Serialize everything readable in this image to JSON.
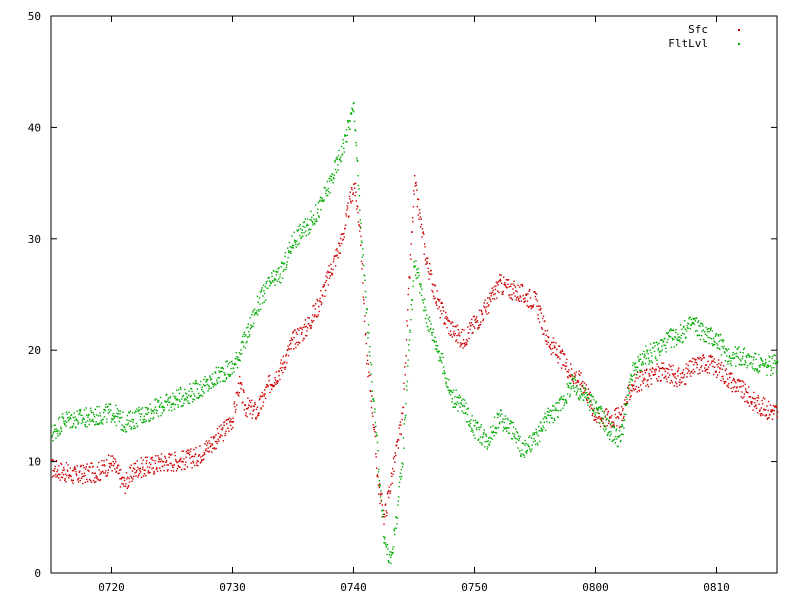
{
  "chart_data": {
    "type": "scatter",
    "title": "",
    "xlabel": "",
    "ylabel": "",
    "x_range_minutes": [
      "0715",
      "0815"
    ],
    "ylim": [
      0,
      50
    ],
    "x_ticks": [
      "0720",
      "0730",
      "0740",
      "0750",
      "0800",
      "0810"
    ],
    "y_ticks": [
      "0",
      "10",
      "20",
      "30",
      "40",
      "50"
    ],
    "grid": false,
    "legend_placement": "top-right",
    "series": [
      {
        "name": "Sfc",
        "color": "#cc0000",
        "points": [
          [
            "0715",
            9.5
          ],
          [
            "0717",
            8.8
          ],
          [
            "0719",
            9.2
          ],
          [
            "0720",
            10.0
          ],
          [
            "0721",
            8.0
          ],
          [
            "0722",
            9.5
          ],
          [
            "0723",
            9.6
          ],
          [
            "0724",
            10.0
          ],
          [
            "0725",
            10.1
          ],
          [
            "0726",
            10.2
          ],
          [
            "0727",
            10.5
          ],
          [
            "0728",
            11.5
          ],
          [
            "0729",
            12.5
          ],
          [
            "0730",
            14.0
          ],
          [
            "0730.5",
            17.0
          ],
          [
            "0731",
            15.0
          ],
          [
            "0732",
            14.5
          ],
          [
            "0733",
            17.0
          ],
          [
            "0734",
            18.5
          ],
          [
            "0735",
            21.0
          ],
          [
            "0736",
            22.0
          ],
          [
            "0737",
            24.0
          ],
          [
            "0738",
            27.0
          ],
          [
            "0739",
            30.0
          ],
          [
            "0740",
            35.0
          ],
          [
            "0740.5",
            31.0
          ],
          [
            "0741",
            20.0
          ],
          [
            "0741.5",
            15.0
          ],
          [
            "0742",
            8.0
          ],
          [
            "0742.5",
            5.0
          ],
          [
            "0743",
            8.0
          ],
          [
            "0743.5",
            11.0
          ],
          [
            "0744",
            14.0
          ],
          [
            "0744.5",
            25.0
          ],
          [
            "0745",
            35.0
          ],
          [
            "0746",
            28.0
          ],
          [
            "0747",
            24.0
          ],
          [
            "0748",
            22.0
          ],
          [
            "0749",
            21.0
          ],
          [
            "0750",
            22.5
          ],
          [
            "0751",
            24.0
          ],
          [
            "0752",
            26.0
          ],
          [
            "0753",
            25.5
          ],
          [
            "0754",
            25.0
          ],
          [
            "0755",
            24.5
          ],
          [
            "0756",
            21.0
          ],
          [
            "0757",
            19.5
          ],
          [
            "0758",
            18.0
          ],
          [
            "0759",
            17.0
          ],
          [
            "0800",
            14.0
          ],
          [
            "0801",
            14.0
          ],
          [
            "0802",
            14.0
          ],
          [
            "0803",
            17.0
          ],
          [
            "0804",
            17.5
          ],
          [
            "0805",
            18.0
          ],
          [
            "0806",
            18.0
          ],
          [
            "0807",
            17.5
          ],
          [
            "0808",
            18.5
          ],
          [
            "0809",
            19.0
          ],
          [
            "0810",
            18.5
          ],
          [
            "0811",
            17.5
          ],
          [
            "0812",
            16.5
          ],
          [
            "0813",
            15.5
          ],
          [
            "0814",
            14.8
          ],
          [
            "0815",
            14.5
          ]
        ]
      },
      {
        "name": "FltLvl",
        "color": "#00aa00",
        "points": [
          [
            "0715",
            12.5
          ],
          [
            "0716",
            13.8
          ],
          [
            "0718",
            14.0
          ],
          [
            "0719",
            14.2
          ],
          [
            "0720",
            14.5
          ],
          [
            "0721",
            13.5
          ],
          [
            "0722",
            14.0
          ],
          [
            "0723",
            14.5
          ],
          [
            "0724",
            15.0
          ],
          [
            "0725",
            15.5
          ],
          [
            "0726",
            16.0
          ],
          [
            "0727",
            16.5
          ],
          [
            "0728",
            17.0
          ],
          [
            "0729",
            18.0
          ],
          [
            "0730",
            18.5
          ],
          [
            "0731",
            21.0
          ],
          [
            "0732",
            24.0
          ],
          [
            "0733",
            26.0
          ],
          [
            "0734",
            27.0
          ],
          [
            "0735",
            30.0
          ],
          [
            "0736",
            31.0
          ],
          [
            "0737",
            32.5
          ],
          [
            "0738",
            35.0
          ],
          [
            "0739",
            38.0
          ],
          [
            "0740",
            42.0
          ],
          [
            "0740.5",
            32.0
          ],
          [
            "0741",
            24.0
          ],
          [
            "0741.5",
            17.0
          ],
          [
            "0742",
            10.0
          ],
          [
            "0742.5",
            3.0
          ],
          [
            "0743",
            1.0
          ],
          [
            "0743.5",
            5.0
          ],
          [
            "0744",
            10.0
          ],
          [
            "0744.5",
            20.0
          ],
          [
            "0745",
            28.0
          ],
          [
            "0746",
            23.0
          ],
          [
            "0747",
            20.0
          ],
          [
            "0748",
            16.0
          ],
          [
            "0749",
            15.0
          ],
          [
            "0750",
            13.0
          ],
          [
            "0751",
            12.0
          ],
          [
            "0752",
            14.0
          ],
          [
            "0753",
            13.0
          ],
          [
            "0754",
            11.0
          ],
          [
            "0755",
            12.0
          ],
          [
            "0756",
            14.0
          ],
          [
            "0757",
            15.0
          ],
          [
            "0758",
            17.0
          ],
          [
            "0759",
            16.0
          ],
          [
            "0800",
            15.0
          ],
          [
            "0801",
            13.0
          ],
          [
            "0802",
            12.0
          ],
          [
            "0803",
            18.0
          ],
          [
            "0804",
            19.5
          ],
          [
            "0805",
            20.0
          ],
          [
            "0806",
            21.0
          ],
          [
            "0807",
            21.5
          ],
          [
            "0808",
            22.5
          ],
          [
            "0809",
            21.5
          ],
          [
            "0810",
            21.0
          ],
          [
            "0811",
            19.5
          ],
          [
            "0812",
            19.5
          ],
          [
            "0813",
            19.0
          ],
          [
            "0814",
            18.5
          ],
          [
            "0815",
            19.0
          ]
        ]
      }
    ]
  }
}
